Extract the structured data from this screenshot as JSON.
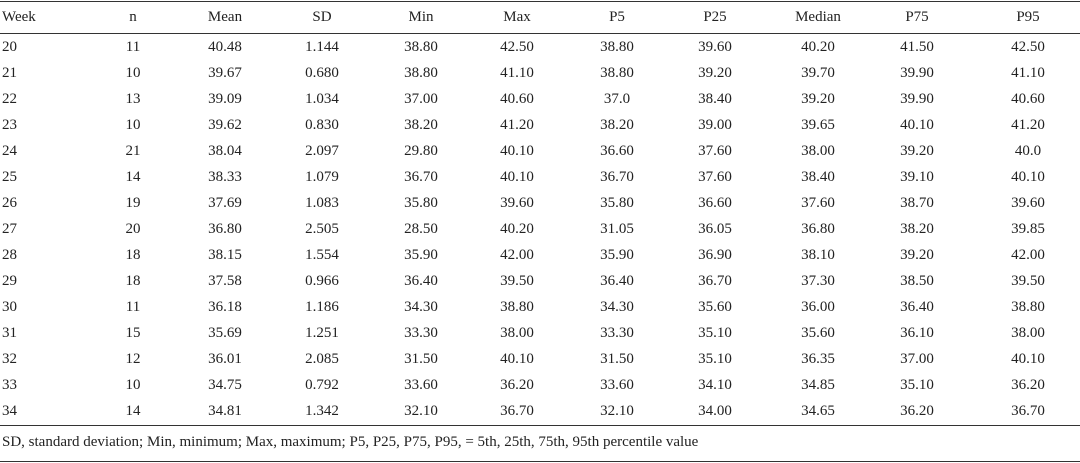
{
  "table": {
    "header": [
      "Week",
      "n",
      "Mean",
      "SD",
      "Min",
      "Max",
      "P5",
      "P25",
      "Median",
      "P75",
      "P95"
    ],
    "rows": [
      [
        "20",
        "11",
        "40.48",
        "1.144",
        "38.80",
        "42.50",
        "38.80",
        "39.60",
        "40.20",
        "41.50",
        "42.50"
      ],
      [
        "21",
        "10",
        "39.67",
        "0.680",
        "38.80",
        "41.10",
        "38.80",
        "39.20",
        "39.70",
        "39.90",
        "41.10"
      ],
      [
        "22",
        "13",
        "39.09",
        "1.034",
        "37.00",
        "40.60",
        "37.0",
        "38.40",
        "39.20",
        "39.90",
        "40.60"
      ],
      [
        "23",
        "10",
        "39.62",
        "0.830",
        "38.20",
        "41.20",
        "38.20",
        "39.00",
        "39.65",
        "40.10",
        "41.20"
      ],
      [
        "24",
        "21",
        "38.04",
        "2.097",
        "29.80",
        "40.10",
        "36.60",
        "37.60",
        "38.00",
        "39.20",
        "40.0"
      ],
      [
        "25",
        "14",
        "38.33",
        "1.079",
        "36.70",
        "40.10",
        "36.70",
        "37.60",
        "38.40",
        "39.10",
        "40.10"
      ],
      [
        "26",
        "19",
        "37.69",
        "1.083",
        "35.80",
        "39.60",
        "35.80",
        "36.60",
        "37.60",
        "38.70",
        "39.60"
      ],
      [
        "27",
        "20",
        "36.80",
        "2.505",
        "28.50",
        "40.20",
        "31.05",
        "36.05",
        "36.80",
        "38.20",
        "39.85"
      ],
      [
        "28",
        "18",
        "38.15",
        "1.554",
        "35.90",
        "42.00",
        "35.90",
        "36.90",
        "38.10",
        "39.20",
        "42.00"
      ],
      [
        "29",
        "18",
        "37.58",
        "0.966",
        "36.40",
        "39.50",
        "36.40",
        "36.70",
        "37.30",
        "38.50",
        "39.50"
      ],
      [
        "30",
        "11",
        "36.18",
        "1.186",
        "34.30",
        "38.80",
        "34.30",
        "35.60",
        "36.00",
        "36.40",
        "38.80"
      ],
      [
        "31",
        "15",
        "35.69",
        "1.251",
        "33.30",
        "38.00",
        "33.30",
        "35.10",
        "35.60",
        "36.10",
        "38.00"
      ],
      [
        "32",
        "12",
        "36.01",
        "2.085",
        "31.50",
        "40.10",
        "31.50",
        "35.10",
        "36.35",
        "37.00",
        "40.10"
      ],
      [
        "33",
        "10",
        "34.75",
        "0.792",
        "33.60",
        "36.20",
        "33.60",
        "34.10",
        "34.85",
        "35.10",
        "36.20"
      ],
      [
        "34",
        "14",
        "34.81",
        "1.342",
        "32.10",
        "36.70",
        "32.10",
        "34.00",
        "34.65",
        "36.20",
        "36.70"
      ]
    ],
    "footnote": "SD, standard deviation; Min, minimum; Max, maximum; P5, P25, P75, P95, = 5th, 25th, 75th, 95th percentile value"
  }
}
